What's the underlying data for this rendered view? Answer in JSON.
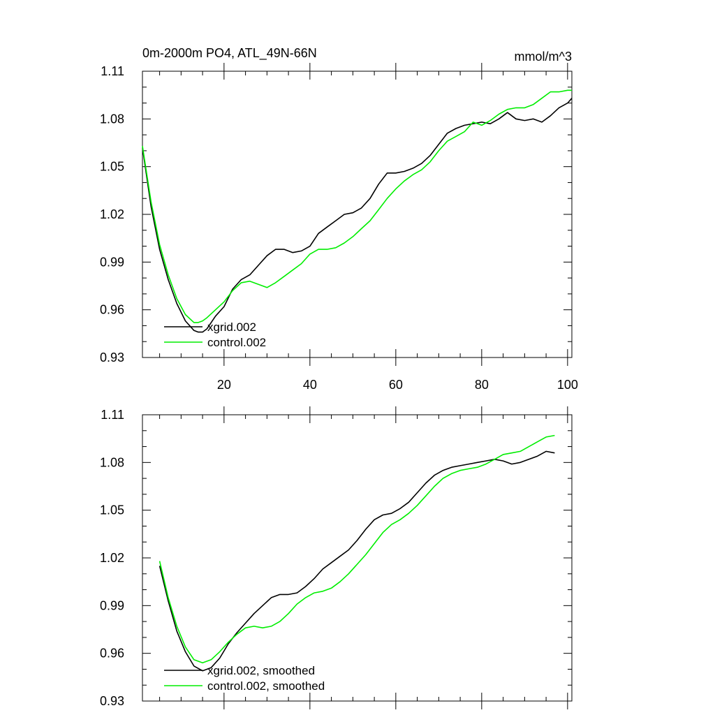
{
  "chart_data": [
    {
      "type": "line",
      "title": "0m-2000m PO4, ATL_49N-66N",
      "units": "mmol/m^3",
      "xlim": [
        1,
        101
      ],
      "ylim": [
        0.93,
        1.11
      ],
      "x_ticks": [
        20,
        40,
        60,
        80,
        100
      ],
      "x_tick_labels": [
        "20",
        "40",
        "60",
        "80",
        "100"
      ],
      "y_ticks": [
        0.93,
        0.96,
        0.99,
        1.02,
        1.05,
        1.08,
        1.11
      ],
      "y_tick_labels": [
        "0.93",
        "0.96",
        "0.99",
        "1.02",
        "1.05",
        "1.08",
        "1.11"
      ],
      "legend_placement": "bottom-left",
      "series": [
        {
          "name": "xgrid.002",
          "color": "#000000",
          "x": [
            1,
            3,
            5,
            7,
            9,
            11,
            13,
            14,
            15,
            16,
            18,
            20,
            22,
            24,
            26,
            28,
            30,
            32,
            34,
            36,
            38,
            40,
            42,
            44,
            46,
            48,
            50,
            52,
            54,
            56,
            58,
            60,
            62,
            64,
            66,
            68,
            70,
            72,
            74,
            76,
            78,
            80,
            82,
            84,
            86,
            88,
            90,
            92,
            94,
            96,
            98,
            100,
            101
          ],
          "values": [
            1.062,
            1.025,
            0.998,
            0.979,
            0.964,
            0.953,
            0.947,
            0.946,
            0.946,
            0.948,
            0.956,
            0.962,
            0.973,
            0.979,
            0.982,
            0.988,
            0.994,
            0.998,
            0.998,
            0.996,
            0.997,
            1.0,
            1.008,
            1.012,
            1.016,
            1.02,
            1.021,
            1.024,
            1.03,
            1.039,
            1.046,
            1.046,
            1.047,
            1.049,
            1.052,
            1.057,
            1.064,
            1.071,
            1.074,
            1.076,
            1.077,
            1.078,
            1.077,
            1.08,
            1.084,
            1.08,
            1.079,
            1.08,
            1.078,
            1.082,
            1.087,
            1.09,
            1.093
          ]
        },
        {
          "name": "control.002",
          "color": "#00ee00",
          "x": [
            1,
            3,
            5,
            7,
            9,
            11,
            13,
            14,
            15,
            16,
            18,
            20,
            22,
            24,
            26,
            28,
            30,
            32,
            34,
            36,
            38,
            40,
            42,
            44,
            46,
            48,
            50,
            52,
            54,
            56,
            58,
            60,
            62,
            64,
            66,
            68,
            70,
            72,
            74,
            76,
            78,
            80,
            82,
            84,
            86,
            88,
            90,
            92,
            94,
            96,
            98,
            100,
            101
          ],
          "values": [
            1.063,
            1.028,
            1.001,
            0.982,
            0.967,
            0.957,
            0.952,
            0.952,
            0.953,
            0.955,
            0.96,
            0.965,
            0.972,
            0.977,
            0.978,
            0.976,
            0.974,
            0.977,
            0.981,
            0.985,
            0.989,
            0.995,
            0.998,
            0.998,
            0.999,
            1.002,
            1.006,
            1.011,
            1.016,
            1.023,
            1.03,
            1.036,
            1.041,
            1.045,
            1.048,
            1.053,
            1.06,
            1.066,
            1.069,
            1.072,
            1.078,
            1.076,
            1.079,
            1.083,
            1.086,
            1.087,
            1.087,
            1.089,
            1.093,
            1.097,
            1.097,
            1.098,
            1.098
          ]
        }
      ]
    },
    {
      "type": "line",
      "xlim": [
        1,
        101
      ],
      "ylim": [
        0.93,
        1.11
      ],
      "x_ticks": [
        20,
        40,
        60,
        80,
        100
      ],
      "y_ticks": [
        0.93,
        0.96,
        0.99,
        1.02,
        1.05,
        1.08,
        1.11
      ],
      "y_tick_labels": [
        "0.93",
        "0.96",
        "0.99",
        "1.02",
        "1.05",
        "1.08",
        "1.11"
      ],
      "legend_placement": "bottom-left",
      "series": [
        {
          "name": "xgrid.002, smoothed",
          "color": "#000000",
          "x": [
            5,
            7,
            9,
            11,
            13,
            15,
            17,
            19,
            21,
            23,
            25,
            27,
            29,
            31,
            33,
            35,
            37,
            39,
            41,
            43,
            45,
            47,
            49,
            51,
            53,
            55,
            57,
            59,
            61,
            63,
            65,
            67,
            69,
            71,
            73,
            75,
            77,
            79,
            81,
            83,
            85,
            87,
            89,
            91,
            93,
            95,
            97
          ],
          "values": [
            1.015,
            0.993,
            0.974,
            0.961,
            0.952,
            0.949,
            0.951,
            0.957,
            0.966,
            0.973,
            0.979,
            0.985,
            0.99,
            0.995,
            0.997,
            0.997,
            0.998,
            1.002,
            1.007,
            1.013,
            1.017,
            1.021,
            1.025,
            1.031,
            1.038,
            1.044,
            1.047,
            1.048,
            1.051,
            1.055,
            1.061,
            1.067,
            1.072,
            1.075,
            1.077,
            1.078,
            1.079,
            1.08,
            1.081,
            1.082,
            1.081,
            1.079,
            1.08,
            1.082,
            1.084,
            1.087,
            1.086
          ]
        },
        {
          "name": "control.002, smoothed",
          "color": "#00ee00",
          "x": [
            5,
            7,
            9,
            11,
            13,
            15,
            17,
            19,
            21,
            23,
            25,
            27,
            29,
            31,
            33,
            35,
            37,
            39,
            41,
            43,
            45,
            47,
            49,
            51,
            53,
            55,
            57,
            59,
            61,
            63,
            65,
            67,
            69,
            71,
            73,
            75,
            77,
            79,
            81,
            83,
            85,
            87,
            89,
            91,
            93,
            95,
            97
          ],
          "values": [
            1.018,
            0.995,
            0.977,
            0.964,
            0.956,
            0.954,
            0.956,
            0.961,
            0.967,
            0.972,
            0.976,
            0.977,
            0.976,
            0.977,
            0.98,
            0.985,
            0.991,
            0.995,
            0.998,
            0.999,
            1.001,
            1.005,
            1.01,
            1.016,
            1.022,
            1.029,
            1.036,
            1.041,
            1.044,
            1.048,
            1.053,
            1.059,
            1.065,
            1.07,
            1.073,
            1.075,
            1.076,
            1.077,
            1.079,
            1.082,
            1.085,
            1.086,
            1.087,
            1.09,
            1.093,
            1.096,
            1.097
          ]
        }
      ]
    }
  ]
}
